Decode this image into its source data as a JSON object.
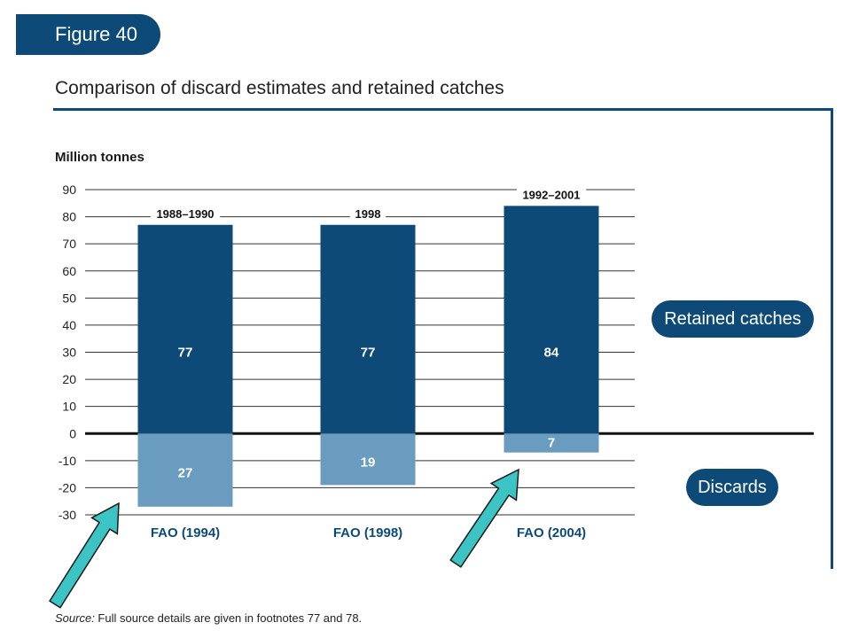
{
  "figure_label": "Figure 40",
  "title": "Comparison of discard estimates and retained catches",
  "legend": {
    "retained": "Retained catches",
    "discards": "Discards"
  },
  "source": {
    "prefix": "Source:",
    "text": " Full source details are given in footnotes 77 and 78."
  },
  "colors": {
    "retained": "#0d4a78",
    "discards": "#6a9cbf",
    "accent": "#0d4a78",
    "arrow": "#3cc4c4"
  },
  "chart_data": {
    "type": "bar",
    "ylabel": "Million tonnes",
    "ylim": [
      -30,
      90
    ],
    "yticks": [
      90,
      80,
      70,
      60,
      50,
      40,
      30,
      20,
      10,
      0,
      -10,
      -20,
      -30
    ],
    "grid": true,
    "categories": [
      "FAO (1994)",
      "FAO (1998)",
      "FAO (2004)"
    ],
    "periods": [
      "1988–1990",
      "1998",
      "1992–2001"
    ],
    "series": [
      {
        "name": "Retained catches",
        "values": [
          77,
          77,
          84
        ]
      },
      {
        "name": "Discards",
        "values": [
          27,
          19,
          7
        ]
      }
    ]
  }
}
